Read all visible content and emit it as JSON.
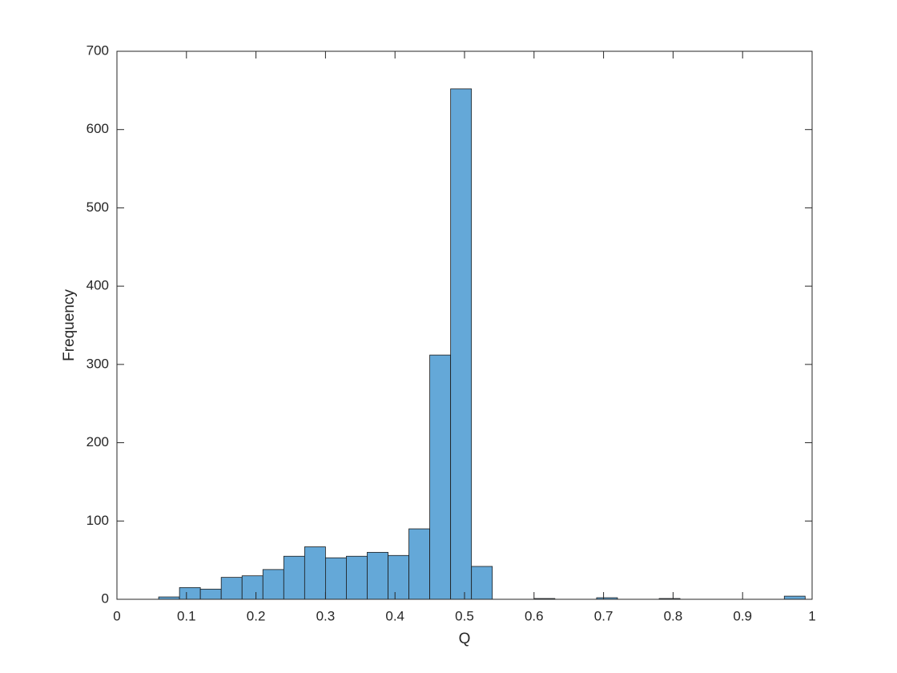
{
  "chart_data": {
    "type": "histogram",
    "xlabel": "Q",
    "ylabel": "Frequency",
    "bins": [
      0.06,
      0.09,
      0.12,
      0.15,
      0.18,
      0.21,
      0.24,
      0.27,
      0.3,
      0.33,
      0.36,
      0.39,
      0.42,
      0.45,
      0.48,
      0.51,
      0.54,
      0.57,
      0.6,
      0.63,
      0.66,
      0.69,
      0.72,
      0.75,
      0.78,
      0.81,
      0.84,
      0.87,
      0.9,
      0.93,
      0.96,
      0.99
    ],
    "counts": [
      3,
      15,
      13,
      28,
      30,
      38,
      55,
      67,
      53,
      55,
      60,
      56,
      90,
      312,
      652,
      42,
      0,
      0,
      1,
      0,
      0,
      2,
      0,
      0,
      1,
      0,
      0,
      0,
      0,
      0,
      4
    ],
    "color": "#64a8d8",
    "xlim": [
      0,
      1
    ],
    "xticks": [
      0,
      0.1,
      0.2,
      0.3,
      0.4,
      0.5,
      0.6,
      0.7,
      0.8,
      0.9,
      1
    ],
    "ylim": [
      0,
      700
    ],
    "yticks": [
      0,
      100,
      200,
      300,
      400,
      500,
      600,
      700
    ]
  }
}
